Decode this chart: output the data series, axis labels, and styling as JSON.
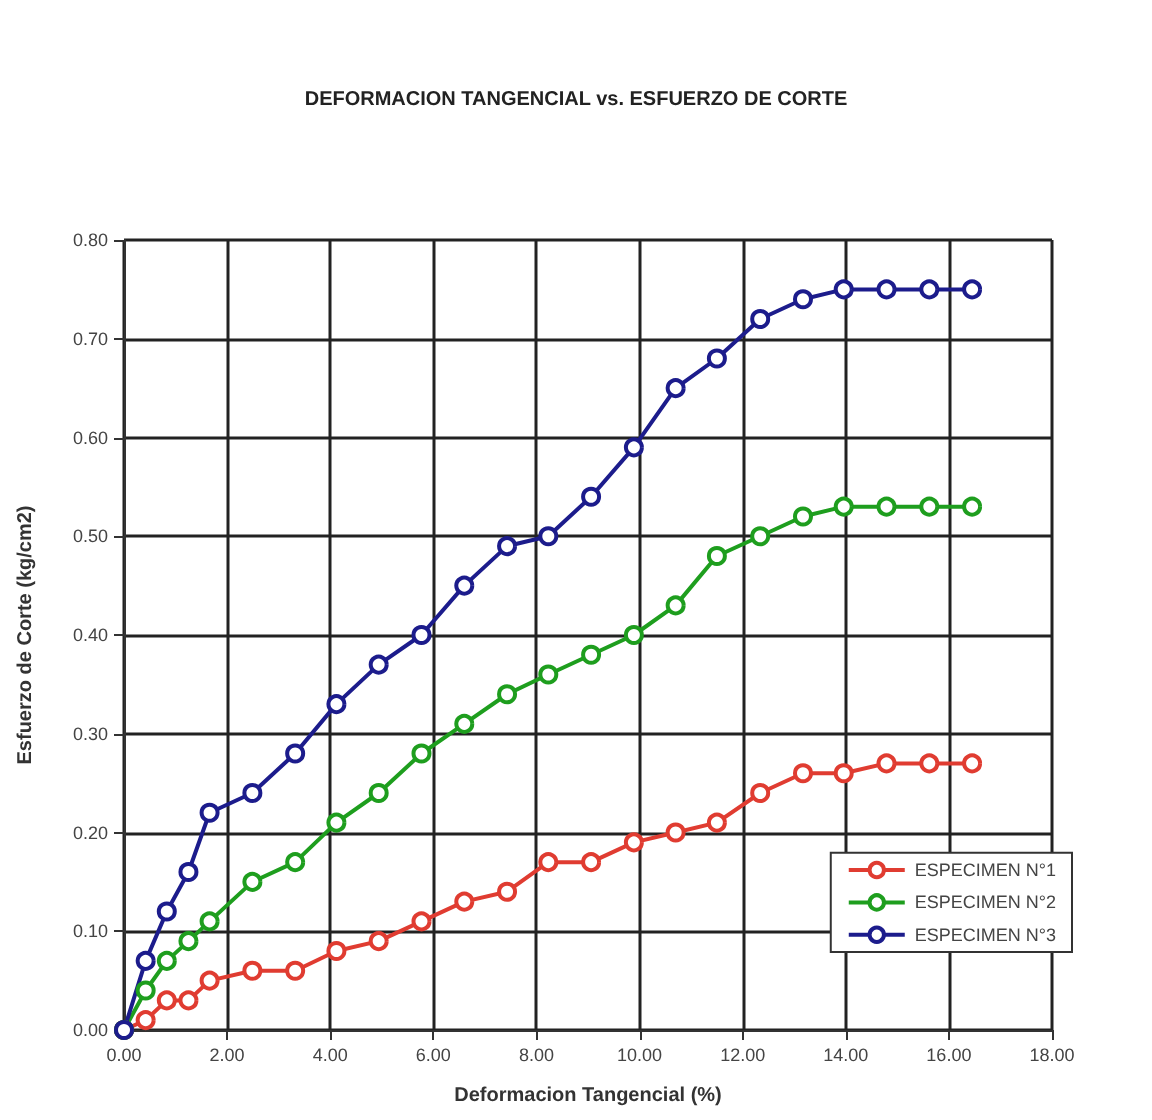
{
  "chart_data": {
    "type": "line",
    "title": "DEFORMACION TANGENCIAL vs. ESFUERZO DE CORTE",
    "xlabel": "Deformacion Tangencial (%)",
    "ylabel": "Esfuerzo de Corte (kg/cm2)",
    "x": [
      0,
      0.42,
      0.83,
      1.25,
      1.66,
      2.49,
      3.32,
      4.12,
      4.94,
      5.77,
      6.6,
      7.43,
      8.23,
      9.06,
      9.89,
      10.7,
      11.5,
      12.34,
      13.17,
      13.96,
      14.79,
      15.62,
      16.45
    ],
    "series": [
      {
        "name": "ESPECIMEN N°1",
        "color": "#e03c31",
        "values": [
          0,
          0.01,
          0.03,
          0.03,
          0.05,
          0.06,
          0.06,
          0.08,
          0.09,
          0.11,
          0.13,
          0.14,
          0.17,
          0.17,
          0.19,
          0.2,
          0.21,
          0.24,
          0.26,
          0.26,
          0.27,
          0.27,
          0.27
        ]
      },
      {
        "name": "ESPECIMEN N°2",
        "color": "#1e9e1e",
        "values": [
          0,
          0.04,
          0.07,
          0.09,
          0.11,
          0.15,
          0.17,
          0.21,
          0.24,
          0.28,
          0.31,
          0.34,
          0.36,
          0.38,
          0.4,
          0.43,
          0.48,
          0.5,
          0.52,
          0.53,
          0.53,
          0.53,
          0.53
        ]
      },
      {
        "name": "ESPECIMEN N°3",
        "color": "#1c1c8c",
        "values": [
          0,
          0.07,
          0.12,
          0.16,
          0.22,
          0.24,
          0.28,
          0.33,
          0.37,
          0.4,
          0.45,
          0.49,
          0.5,
          0.54,
          0.59,
          0.65,
          0.68,
          0.72,
          0.74,
          0.75,
          0.75,
          0.75,
          0.75
        ]
      }
    ],
    "xlim": [
      0,
      18
    ],
    "xticks": [
      {
        "value": 0,
        "label": "0.00"
      },
      {
        "value": 2,
        "label": "2.00"
      },
      {
        "value": 4,
        "label": "4.00"
      },
      {
        "value": 6,
        "label": "6.00"
      },
      {
        "value": 8,
        "label": "8.00"
      },
      {
        "value": 10,
        "label": "10.00"
      },
      {
        "value": 12,
        "label": "12.00"
      },
      {
        "value": 14,
        "label": "14.00"
      },
      {
        "value": 16,
        "label": "16.00"
      },
      {
        "value": 18,
        "label": "18.00"
      }
    ],
    "ylim": [
      0,
      0.8
    ],
    "yticks": [
      {
        "value": 0,
        "label": "0.00"
      },
      {
        "value": 0.1,
        "label": "0.10"
      },
      {
        "value": 0.2,
        "label": "0.20"
      },
      {
        "value": 0.3,
        "label": "0.30"
      },
      {
        "value": 0.4,
        "label": "0.40"
      },
      {
        "value": 0.5,
        "label": "0.50"
      },
      {
        "value": 0.6,
        "label": "0.60"
      },
      {
        "value": 0.7,
        "label": "0.70"
      },
      {
        "value": 0.8,
        "label": "0.80"
      }
    ],
    "grid": true,
    "legend": "bottom right",
    "marker": "circle",
    "line_style": "solid"
  }
}
